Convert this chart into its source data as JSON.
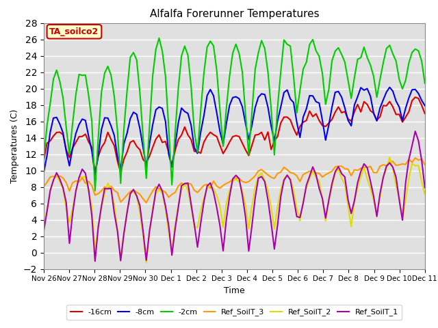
{
  "title": "Alfalfa Forerunner Temperatures",
  "xlabel": "Time",
  "ylabel": "Temperatures (C)",
  "annotation": "TA_soilco2",
  "annotation_bbox": {
    "facecolor": "#ffffcc",
    "edgecolor": "#cc0000",
    "boxstyle": "round,pad=0.3"
  },
  "annotation_color": "#cc0000",
  "plot_bg_color": "#e0e0e0",
  "ylim": [
    -2,
    28
  ],
  "yticks": [
    -2,
    0,
    2,
    4,
    6,
    8,
    10,
    12,
    14,
    16,
    18,
    20,
    22,
    24,
    26,
    28
  ],
  "x_labels": [
    "Nov 26",
    "Nov 27",
    "Nov 28",
    "Nov 29",
    "Nov 30",
    "Dec 1",
    "Dec 2",
    "Dec 3",
    "Dec 4",
    "Dec 5",
    "Dec 6",
    "Dec 7",
    "Dec 8",
    "Dec 9",
    "Dec 10",
    "Dec 11"
  ],
  "legend_entries": [
    {
      "label": "-16cm",
      "color": "#dd0000",
      "lw": 1.5
    },
    {
      "label": "-8cm",
      "color": "#0000ee",
      "lw": 1.5
    },
    {
      "label": "-2cm",
      "color": "#00cc00",
      "lw": 1.5
    },
    {
      "label": "Ref_SoilT_3",
      "color": "#ff9900",
      "lw": 1.5
    },
    {
      "label": "Ref_SoilT_2",
      "color": "#dddd00",
      "lw": 1.5
    },
    {
      "label": "Ref_SoilT_1",
      "color": "#aa00aa",
      "lw": 1.5
    }
  ]
}
